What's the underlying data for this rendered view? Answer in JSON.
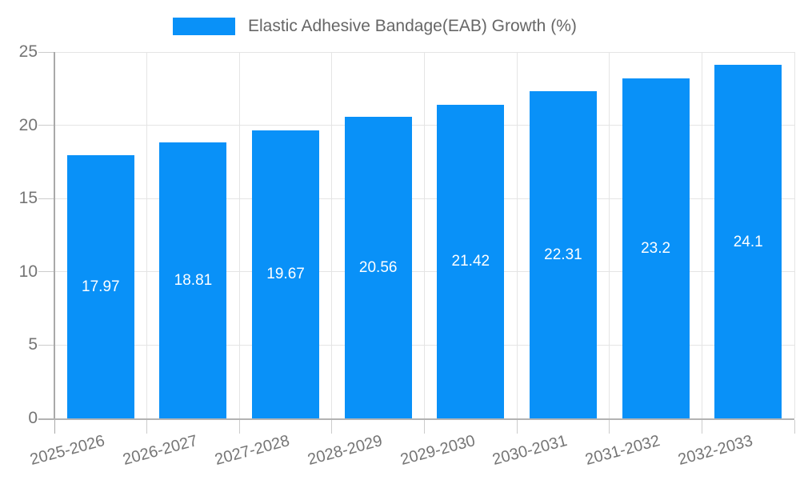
{
  "chart_data": {
    "type": "bar",
    "title": "",
    "legend_label": "Elastic Adhesive Bandage(EAB) Growth (%)",
    "legend_position": "top",
    "categories": [
      "2025-2026",
      "2026-2027",
      "2027-2028",
      "2028-2029",
      "2029-2030",
      "2030-2031",
      "2031-2032",
      "2032-2033"
    ],
    "values": [
      17.97,
      18.81,
      19.67,
      20.56,
      21.42,
      22.31,
      23.2,
      24.1
    ],
    "xlabel": "",
    "ylabel": "",
    "ylim": [
      0,
      25
    ],
    "yticks": [
      0,
      5,
      10,
      15,
      20,
      25
    ],
    "grid": true,
    "xtick_rotation_deg": -15,
    "colors": {
      "bar_fill": "#0991f8",
      "bar_value_label": "#ffffff",
      "axis_text": "#757575",
      "legend_text": "#666666",
      "gridline": "#e4e4e4",
      "tick": "#cccccc",
      "axis_line": "#a9a9a9",
      "background": "#ffffff"
    }
  }
}
